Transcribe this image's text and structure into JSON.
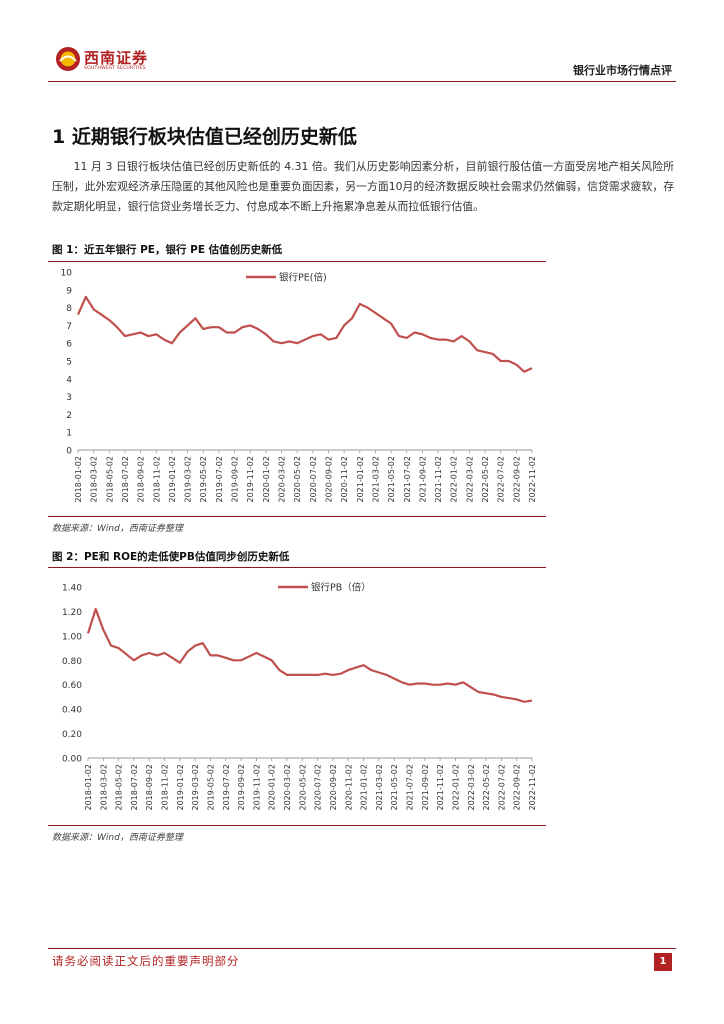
{
  "header": {
    "logo_cn": "西南证券",
    "logo_en": "SOUTHWEST SECURITIES",
    "report_type": "银行业市场行情点评",
    "brand_color": "#b22222"
  },
  "section": {
    "title": "1 近期银行板块估值已经创历史新低",
    "body": "11 月 3 日银行板块估值已经创历史新低的 4.31 倍。我们从历史影响因素分析，目前银行股估值一方面受房地产相关风险所压制，此外宏观经济承压隐匿的其他风险也是重要负面因素，另一方面10月的经济数据反映社会需求仍然偏弱，信贷需求疲软，存款定期化明显，银行信贷业务增长乏力、付息成本不断上升拖累净息差从而拉低银行估值。"
  },
  "figure1": {
    "title": "图 1：近五年银行 PE，银行 PE 估值创历史新低",
    "source": "数据来源：Wind，西南证券整理"
  },
  "figure2": {
    "title": "图 2：PE和 ROE的走低使PB估值同步创历史新低",
    "source": "数据来源：Wind，西南证券整理"
  },
  "footer": {
    "notice": "请务必阅读正文后的重要声明部分",
    "page": "1"
  },
  "chart_data": [
    {
      "type": "line",
      "series": [
        {
          "name": "银行PE(倍)",
          "color": "#c0504d",
          "x": [
            "2018-01",
            "2018-02",
            "2018-03",
            "2018-04",
            "2018-05",
            "2018-06",
            "2018-07",
            "2018-08",
            "2018-09",
            "2018-10",
            "2018-11",
            "2018-12",
            "2019-01",
            "2019-02",
            "2019-03",
            "2019-04",
            "2019-05",
            "2019-06",
            "2019-07",
            "2019-08",
            "2019-09",
            "2019-10",
            "2019-11",
            "2019-12",
            "2020-01",
            "2020-02",
            "2020-03",
            "2020-04",
            "2020-05",
            "2020-06",
            "2020-07",
            "2020-08",
            "2020-09",
            "2020-10",
            "2020-11",
            "2020-12",
            "2021-01",
            "2021-02",
            "2021-03",
            "2021-04",
            "2021-05",
            "2021-06",
            "2021-07",
            "2021-08",
            "2021-09",
            "2021-10",
            "2021-11",
            "2021-12",
            "2022-01",
            "2022-02",
            "2022-03",
            "2022-04",
            "2022-05",
            "2022-06",
            "2022-07",
            "2022-08",
            "2022-09",
            "2022-10",
            "2022-11"
          ],
          "values": [
            7.6,
            8.6,
            7.9,
            7.6,
            7.3,
            6.9,
            6.4,
            6.5,
            6.6,
            6.4,
            6.5,
            6.2,
            6.0,
            6.6,
            7.0,
            7.4,
            6.8,
            6.9,
            6.9,
            6.6,
            6.6,
            6.9,
            7.0,
            6.8,
            6.5,
            6.1,
            6.0,
            6.1,
            6.0,
            6.2,
            6.4,
            6.5,
            6.2,
            6.3,
            7.0,
            7.4,
            8.2,
            8.0,
            7.7,
            7.4,
            7.1,
            6.4,
            6.3,
            6.6,
            6.5,
            6.3,
            6.2,
            6.2,
            6.1,
            6.4,
            6.1,
            5.6,
            5.5,
            5.4,
            5.0,
            5.0,
            4.8,
            4.4,
            4.6
          ]
        }
      ],
      "ylim": [
        0,
        10
      ],
      "yticks": [
        "0",
        "1",
        "2",
        "3",
        "4",
        "5",
        "6",
        "7",
        "8",
        "9",
        "10"
      ],
      "xticks": [
        "2018-01-02",
        "2018-03-02",
        "2018-05-02",
        "2018-07-02",
        "2018-09-02",
        "2018-11-02",
        "2019-01-02",
        "2019-03-02",
        "2019-05-02",
        "2019-07-02",
        "2019-09-02",
        "2019-11-02",
        "2020-01-02",
        "2020-03-02",
        "2020-05-02",
        "2020-07-02",
        "2020-09-02",
        "2020-11-02",
        "2021-01-02",
        "2021-03-02",
        "2021-05-02",
        "2021-07-02",
        "2021-09-02",
        "2021-11-02",
        "2022-01-02",
        "2022-03-02",
        "2022-05-02",
        "2022-07-02",
        "2022-09-02",
        "2022-11-02"
      ],
      "xticks_shown": [
        "2018-01-02",
        "2018-03-02",
        "2018-05-02",
        "2018-07-02",
        "2018-09-02",
        "2018-11-02",
        "2019-01-02",
        "2019-03-02",
        "2019-05-02",
        "2019-07-02",
        "2019-09-02",
        "2019-11-02",
        "2020-01-02",
        "2020-03-02",
        "2020-05-02",
        "2020-07-02",
        "2020-09-02",
        "2020-11-02",
        "2021-01-02",
        "2021-03-02",
        "2021-05-02",
        "2021-07-02",
        "2021-09-02",
        "2021-11-02",
        "2022-01-02",
        "2022-03-02",
        "2022-05-02",
        "2022-07-02",
        "2022-09-02",
        "2022-11-02"
      ],
      "legend_position": "top-center",
      "grid": false
    },
    {
      "type": "line",
      "series": [
        {
          "name": "银行PB（倍）",
          "color": "#c0504d",
          "x": [
            "2018-01",
            "2018-02",
            "2018-03",
            "2018-04",
            "2018-05",
            "2018-06",
            "2018-07",
            "2018-08",
            "2018-09",
            "2018-10",
            "2018-11",
            "2018-12",
            "2019-01",
            "2019-02",
            "2019-03",
            "2019-04",
            "2019-05",
            "2019-06",
            "2019-07",
            "2019-08",
            "2019-09",
            "2019-10",
            "2019-11",
            "2019-12",
            "2020-01",
            "2020-02",
            "2020-03",
            "2020-04",
            "2020-05",
            "2020-06",
            "2020-07",
            "2020-08",
            "2020-09",
            "2020-10",
            "2020-11",
            "2020-12",
            "2021-01",
            "2021-02",
            "2021-03",
            "2021-04",
            "2021-05",
            "2021-06",
            "2021-07",
            "2021-08",
            "2021-09",
            "2021-10",
            "2021-11",
            "2021-12",
            "2022-01",
            "2022-02",
            "2022-03",
            "2022-04",
            "2022-05",
            "2022-06",
            "2022-07",
            "2022-08",
            "2022-09",
            "2022-10",
            "2022-11"
          ],
          "values": [
            1.02,
            1.22,
            1.05,
            0.92,
            0.9,
            0.85,
            0.8,
            0.84,
            0.86,
            0.84,
            0.86,
            0.82,
            0.78,
            0.87,
            0.92,
            0.94,
            0.84,
            0.84,
            0.82,
            0.8,
            0.8,
            0.83,
            0.86,
            0.83,
            0.8,
            0.72,
            0.68,
            0.68,
            0.68,
            0.68,
            0.68,
            0.69,
            0.68,
            0.69,
            0.72,
            0.74,
            0.76,
            0.72,
            0.7,
            0.68,
            0.65,
            0.62,
            0.6,
            0.61,
            0.61,
            0.6,
            0.6,
            0.61,
            0.6,
            0.62,
            0.58,
            0.54,
            0.53,
            0.52,
            0.5,
            0.49,
            0.48,
            0.46,
            0.47
          ]
        }
      ],
      "ylim": [
        0,
        1.4
      ],
      "yticks": [
        "0.00",
        "0.20",
        "0.40",
        "0.60",
        "0.80",
        "1.00",
        "1.20",
        "1.40"
      ],
      "xticks": [
        "2018-01-02",
        "2018-03-02",
        "2018-05-02",
        "2018-07-02",
        "2018-09-02",
        "2018-11-02",
        "2019-01-02",
        "2019-03-02",
        "2019-05-02",
        "2019-07-02",
        "2019-09-02",
        "2019-11-02",
        "2020-01-02",
        "2020-03-02",
        "2020-05-02",
        "2020-07-02",
        "2020-09-02",
        "2020-11-02",
        "2021-01-02",
        "2021-03-02",
        "2021-05-02",
        "2021-07-02",
        "2021-09-02",
        "2021-11-02",
        "2022-01-02",
        "2022-03-02",
        "2022-05-02",
        "2022-07-02",
        "2022-09-02",
        "2022-11-02"
      ],
      "xticks_shown": [
        "2018-01-02",
        "2018-03-02",
        "2018-05-02",
        "2018-07-02",
        "2018-09-02",
        "2018-11-02",
        "2019-01-02",
        "2019-03-02",
        "2019-05-02",
        "2019-07-02",
        "2019-09-02",
        "2019-11-02",
        "2020-01-02",
        "2020-03-02",
        "2020-05-02",
        "2020-07-02",
        "2020-09-02",
        "2020-11-02",
        "2021-01-02",
        "2021-03-02",
        "2021-05-02",
        "2021-07-02",
        "2021-09-02",
        "2021-11-02",
        "2022-01-02",
        "2022-03-02",
        "2022-05-02",
        "2022-07-02",
        "2022-09-02",
        "2022-11-02"
      ],
      "legend_position": "top-center",
      "grid": false
    }
  ]
}
